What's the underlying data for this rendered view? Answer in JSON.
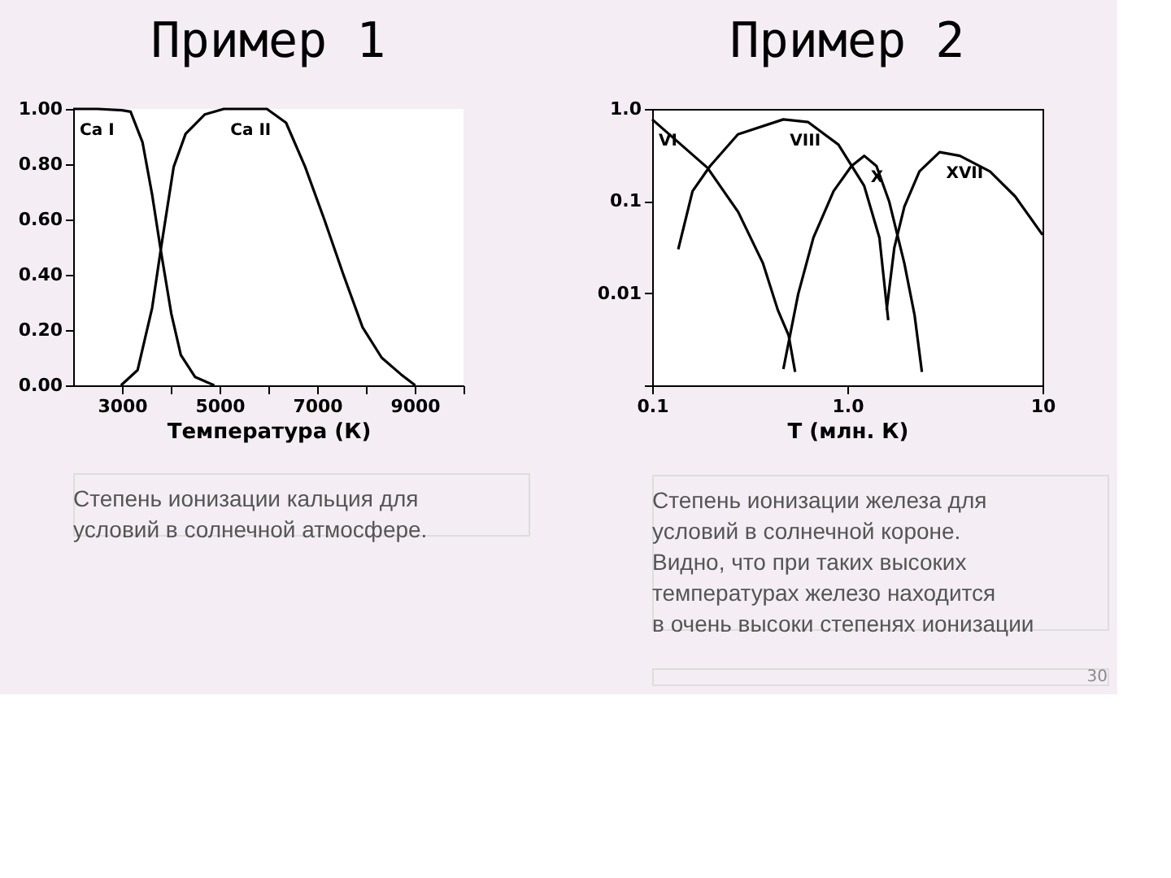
{
  "chart_data": [
    {
      "type": "line",
      "title": "Пример 1",
      "xlabel": "Температура (К)",
      "xlim": [
        2000,
        10000
      ],
      "xticks": [
        3000,
        {
          "value": 4000,
          "label": null
        },
        5000,
        {
          "value": 6000,
          "label": null
        },
        7000,
        {
          "value": 8000,
          "label": null
        },
        9000,
        {
          "value": 10000,
          "label": null
        }
      ],
      "ylim": [
        0,
        1
      ],
      "yticks": [
        {
          "value": 0,
          "label": "0.00"
        },
        {
          "value": 0.2,
          "label": "0.20"
        },
        {
          "value": 0.4,
          "label": "0.40"
        },
        {
          "value": 0.6,
          "label": "0.60"
        },
        {
          "value": 0.8,
          "label": "0.80"
        },
        {
          "value": 1,
          "label": "1.00"
        }
      ],
      "grid": false,
      "legend": false,
      "marker": "none",
      "line_style": "solid",
      "series": [
        {
          "name": "Ca I",
          "color": "#000000",
          "x": [
            2000,
            2500,
            3000,
            3176,
            3420,
            3618,
            3794,
            4010,
            4206,
            4500,
            4892
          ],
          "values": [
            1.0,
            1.0,
            0.995,
            0.99,
            0.88,
            0.69,
            0.49,
            0.26,
            0.11,
            0.03,
            0
          ]
        },
        {
          "name": "Ca II",
          "color": "#000000",
          "x": [
            2980,
            3320,
            3618,
            3794,
            4059,
            4304,
            4696,
            5088,
            5970,
            6363,
            6755,
            7147,
            7539,
            7931,
            8323,
            8716,
            9010
          ],
          "values": [
            0,
            0.055,
            0.28,
            0.49,
            0.79,
            0.91,
            0.98,
            1.0,
            1.0,
            0.95,
            0.79,
            0.6,
            0.4,
            0.21,
            0.1,
            0.04,
            0
          ]
        }
      ],
      "annotations": [
        "Степень ионизации кальция для\nусловий в солнечной атмосфере."
      ]
    },
    {
      "type": "line",
      "title": "Пример 2",
      "xlabel": "Т (млн. К)",
      "log": "xy",
      "xlim": [
        0.1,
        10
      ],
      "xticks": [
        0.1,
        {
          "value": 1,
          "label": "1.0"
        },
        10
      ],
      "ylim": [
        0.001,
        1
      ],
      "yticks": [
        {
          "value": 0.001,
          "label": null
        },
        0.01,
        0.1,
        {
          "value": 1,
          "label": "1.0"
        }
      ],
      "grid": false,
      "legend": false,
      "marker": "none",
      "line_style": "solid",
      "series": [
        {
          "name": "VI",
          "color": "#000000",
          "x": [
            0.1,
            0.192,
            0.276,
            0.37,
            0.44,
            0.5,
            0.54
          ],
          "values": [
            0.77,
            0.23,
            0.076,
            0.021,
            0.0066,
            0.0035,
            0.0014
          ]
        },
        {
          "name": "VIII",
          "color": "#000000",
          "x": [
            0.136,
            0.161,
            0.198,
            0.275,
            0.47,
            0.63,
            0.9,
            1.22,
            1.46,
            1.62
          ],
          "values": [
            0.03,
            0.128,
            0.24,
            0.53,
            0.77,
            0.72,
            0.41,
            0.146,
            0.04,
            0.0051
          ]
        },
        {
          "name": "X",
          "color": "#000000",
          "x": [
            0.47,
            0.56,
            0.67,
            0.85,
            1.05,
            1.22,
            1.41,
            1.64,
            1.96,
            2.21,
            2.41
          ],
          "values": [
            0.0015,
            0.0098,
            0.04,
            0.128,
            0.24,
            0.31,
            0.24,
            0.098,
            0.021,
            0.0058,
            0.0014
          ]
        },
        {
          "name": "XVII",
          "color": "#000000",
          "x": [
            1.59,
            1.74,
            1.96,
            2.34,
            2.97,
            3.77,
            5.38,
            7.25,
            10
          ],
          "values": [
            0.0066,
            0.031,
            0.087,
            0.21,
            0.34,
            0.31,
            0.21,
            0.112,
            0.043
          ]
        }
      ],
      "annotations": [
        "Степень ионизации железа для\nусловий в солнечной короне.\nВидно, что при таких высоких\nтемпературах железо находится\nв очень высоки степенях ионизации",
        "30"
      ]
    }
  ]
}
